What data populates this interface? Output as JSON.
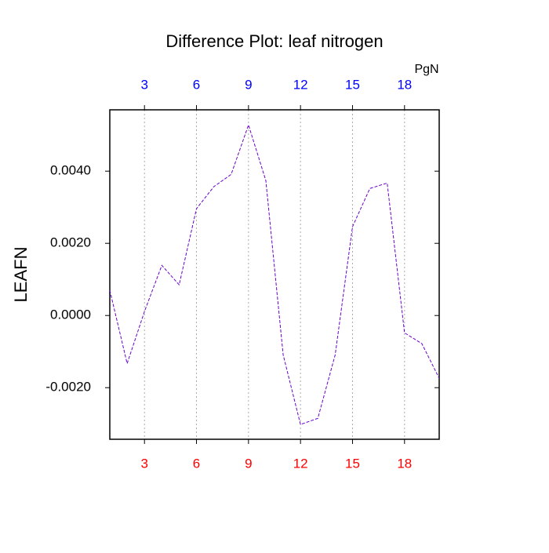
{
  "chart_data": {
    "type": "line",
    "title": "Difference Plot: leaf nitrogen",
    "ylabel": "LEAFN",
    "top_axis_label": "PgN",
    "x": [
      1,
      2,
      3,
      4,
      5,
      6,
      7,
      8,
      9,
      10,
      11,
      12,
      13,
      14,
      15,
      16,
      17,
      18,
      19,
      20
    ],
    "series": [
      {
        "name": "LEAFN",
        "color": "#6a00d0",
        "values": [
          0.0007,
          -0.00133,
          0.00011,
          0.00139,
          0.00085,
          0.00296,
          0.00357,
          0.00391,
          0.00528,
          0.00374,
          -0.00109,
          -0.00302,
          -0.00285,
          -0.00109,
          0.00246,
          0.00352,
          0.00367,
          -0.00048,
          -0.00078,
          -0.00174
        ]
      }
    ],
    "xlim": [
      1,
      20
    ],
    "xticks": [
      3,
      6,
      9,
      12,
      15,
      18
    ],
    "ylim": [
      -0.00343,
      0.0057
    ],
    "yticks": [
      {
        "value": -0.002,
        "label": "-0.0020"
      },
      {
        "value": 0,
        "label": "0.0000"
      },
      {
        "value": 0.002,
        "label": "0.0020"
      },
      {
        "value": 0.004,
        "label": "0.0040"
      }
    ],
    "grid": "x",
    "bottom_tick_color": "#ff0000",
    "top_tick_color": "#0000ff",
    "dashed": true
  }
}
